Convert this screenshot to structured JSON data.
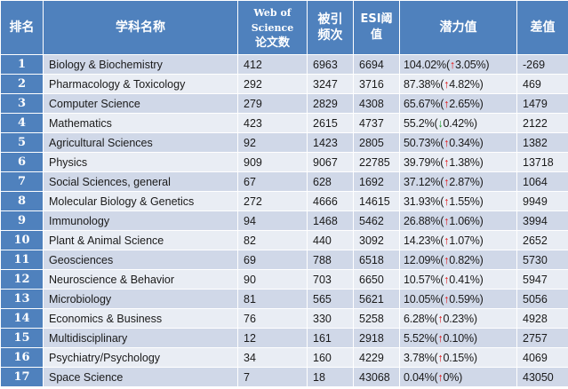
{
  "headers": {
    "rank": "排名",
    "name": "学科名称",
    "wos_line1": "Web of",
    "wos_line2": "Science",
    "wos_line3": "论文数",
    "citations_line1": "被引",
    "citations_line2": "频次",
    "esi_line1": "ESI阈",
    "esi_line2": "值",
    "potential": "潜力值",
    "difference": "差值"
  },
  "rows": [
    {
      "rank": "1",
      "name": "Biology & Biochemistry",
      "wos": "412",
      "citations": "6963",
      "esi": "6694",
      "potential_value": "104.02%(",
      "trend": "up",
      "change": "3.05%)",
      "difference": "-269"
    },
    {
      "rank": "2",
      "name": "Pharmacology & Toxicology",
      "wos": "292",
      "citations": "3247",
      "esi": "3716",
      "potential_value": "87.38%(",
      "trend": "up",
      "change": "4.82%)",
      "difference": "469"
    },
    {
      "rank": "3",
      "name": "Computer Science",
      "wos": "279",
      "citations": "2829",
      "esi": "4308",
      "potential_value": "65.67%(",
      "trend": "up",
      "change": "2.65%)",
      "difference": "1479"
    },
    {
      "rank": "4",
      "name": "Mathematics",
      "wos": "423",
      "citations": "2615",
      "esi": "4737",
      "potential_value": "55.2%(",
      "trend": "down",
      "change": "0.42%)",
      "difference": "2122"
    },
    {
      "rank": "5",
      "name": "Agricultural Sciences",
      "wos": "92",
      "citations": "1423",
      "esi": "2805",
      "potential_value": "50.73%(",
      "trend": "up",
      "change": "0.34%)",
      "difference": "1382"
    },
    {
      "rank": "6",
      "name": "Physics",
      "wos": "909",
      "citations": "9067",
      "esi": "22785",
      "potential_value": "39.79%(",
      "trend": "up",
      "change": "1.38%)",
      "difference": "13718"
    },
    {
      "rank": "7",
      "name": "Social Sciences, general",
      "wos": "67",
      "citations": "628",
      "esi": "1692",
      "potential_value": "37.12%(",
      "trend": "up",
      "change": "2.87%)",
      "difference": "1064"
    },
    {
      "rank": "8",
      "name": "Molecular Biology & Genetics",
      "wos": "272",
      "citations": "4666",
      "esi": "14615",
      "potential_value": "31.93%(",
      "trend": "up",
      "change": "1.55%)",
      "difference": "9949"
    },
    {
      "rank": "9",
      "name": "Immunology",
      "wos": "94",
      "citations": "1468",
      "esi": "5462",
      "potential_value": "26.88%(",
      "trend": "up",
      "change": "1.06%)",
      "difference": "3994"
    },
    {
      "rank": "10",
      "name": "Plant & Animal Science",
      "wos": "82",
      "citations": "440",
      "esi": "3092",
      "potential_value": "14.23%(",
      "trend": "up",
      "change": "1.07%)",
      "difference": "2652"
    },
    {
      "rank": "11",
      "name": "Geosciences",
      "wos": "69",
      "citations": "788",
      "esi": "6518",
      "potential_value": "12.09%(",
      "trend": "up",
      "change": "0.82%)",
      "difference": "5730"
    },
    {
      "rank": "12",
      "name": "Neuroscience & Behavior",
      "wos": "90",
      "citations": "703",
      "esi": "6650",
      "potential_value": "10.57%(",
      "trend": "up",
      "change": "0.41%)",
      "difference": "5947"
    },
    {
      "rank": "13",
      "name": "Microbiology",
      "wos": "81",
      "citations": "565",
      "esi": "5621",
      "potential_value": "10.05%(",
      "trend": "up",
      "change": "0.59%)",
      "difference": "5056"
    },
    {
      "rank": "14",
      "name": "Economics & Business",
      "wos": "76",
      "citations": "330",
      "esi": "5258",
      "potential_value": "6.28%(",
      "trend": "up",
      "change": "0.23%)",
      "difference": "4928"
    },
    {
      "rank": "15",
      "name": "Multidisciplinary",
      "wos": "12",
      "citations": "161",
      "esi": "2918",
      "potential_value": "5.52%(",
      "trend": "up",
      "change": "0.10%)",
      "difference": "2757"
    },
    {
      "rank": "16",
      "name": "Psychiatry/Psychology",
      "wos": "34",
      "citations": "160",
      "esi": "4229",
      "potential_value": "3.78%(",
      "trend": "up",
      "change": "0.15%)",
      "difference": "4069"
    },
    {
      "rank": "17",
      "name": "Space Science",
      "wos": "7",
      "citations": "18",
      "esi": "43068",
      "potential_value": "0.04%(",
      "trend": "up",
      "change": "0%)",
      "difference": "43050"
    }
  ],
  "colors": {
    "header_bg": "#4f81bd",
    "row_odd": "#d0d8e8",
    "row_even": "#e9edf4",
    "arrow_up": "#e01010",
    "arrow_down": "#1a9a2a"
  },
  "icons": {
    "up": "up-arrow-icon",
    "down": "down-arrow-icon"
  }
}
